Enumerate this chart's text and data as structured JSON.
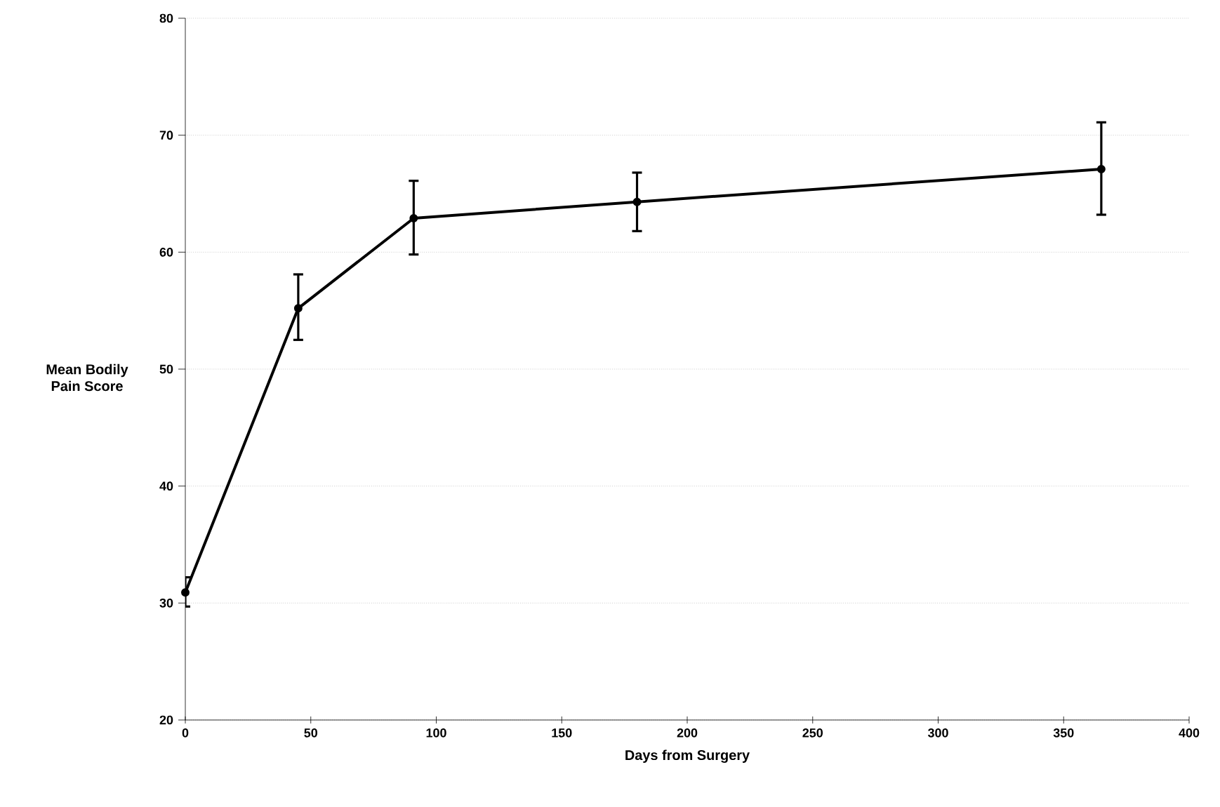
{
  "chart_data": {
    "type": "line",
    "xlabel": "Days from Surgery",
    "ylabel": "Mean Bodily\nPain Score",
    "x": [
      0,
      45,
      91,
      180,
      365
    ],
    "series": [
      {
        "color": "#000000",
        "values": [
          30.9,
          55.2,
          62.9,
          64.3,
          67.1
        ],
        "errors": [
          [
            29.7,
            32.2
          ],
          [
            52.5,
            58.1
          ],
          [
            59.8,
            66.1
          ],
          [
            61.8,
            66.8
          ],
          [
            63.2,
            71.1
          ]
        ]
      }
    ],
    "xlim": [
      0,
      400
    ],
    "xticks": [
      0,
      50,
      100,
      150,
      200,
      250,
      300,
      350,
      400
    ],
    "ylim": [
      20,
      80
    ],
    "yticks": [
      20,
      30,
      40,
      50,
      60,
      70,
      80
    ],
    "grid": "y",
    "marker": "circle",
    "line_style": "solid"
  }
}
